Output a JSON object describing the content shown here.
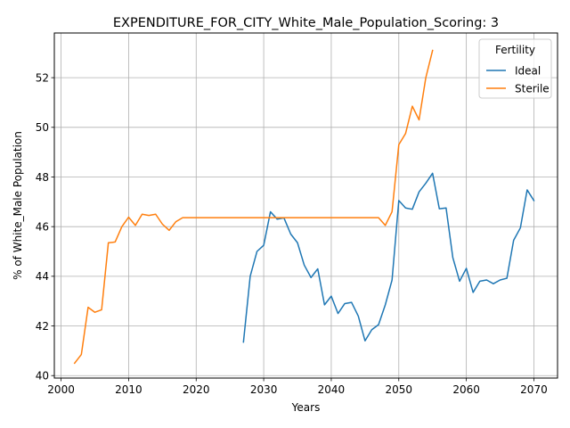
{
  "chart_data": {
    "type": "line",
    "title": "EXPENDITURE_FOR_CITY_White_Male_Population_Scoring: 3",
    "xlabel": "Years",
    "ylabel": "% of White_Male Population",
    "xlim": [
      1999,
      2073.5
    ],
    "ylim": [
      39.9,
      53.8
    ],
    "xticks": [
      2000,
      2010,
      2020,
      2030,
      2040,
      2050,
      2060,
      2070
    ],
    "yticks": [
      40,
      42,
      44,
      46,
      48,
      50,
      52
    ],
    "grid": true,
    "legend": {
      "title": "Fertility",
      "position": "top-right"
    },
    "series": [
      {
        "name": "Ideal",
        "color": "#1f77b4",
        "x": [
          2027,
          2028,
          2029,
          2030,
          2031,
          2032,
          2033,
          2034,
          2035,
          2036,
          2037,
          2038,
          2039,
          2040,
          2041,
          2042,
          2043,
          2044,
          2045,
          2046,
          2047,
          2048,
          2049,
          2050,
          2051,
          2052,
          2053,
          2054,
          2055,
          2056,
          2057,
          2058,
          2059,
          2060,
          2061,
          2062,
          2063,
          2064,
          2065,
          2066,
          2067,
          2068,
          2069,
          2070
        ],
        "y": [
          41.35,
          44.0,
          45.0,
          45.25,
          46.6,
          46.3,
          46.35,
          45.7,
          45.35,
          44.45,
          43.95,
          44.3,
          42.85,
          43.2,
          42.5,
          42.9,
          42.95,
          42.4,
          41.4,
          41.85,
          42.05,
          42.85,
          43.85,
          47.05,
          46.75,
          46.7,
          47.4,
          47.75,
          48.15,
          46.72,
          46.75,
          44.75,
          43.8,
          44.32,
          43.35,
          43.8,
          43.85,
          43.7,
          43.85,
          43.92,
          45.45,
          45.95,
          47.48,
          47.05
        ]
      },
      {
        "name": "Sterile",
        "color": "#ff7f0e",
        "x": [
          2002,
          2003,
          2004,
          2005,
          2006,
          2007,
          2008,
          2009,
          2010,
          2011,
          2012,
          2013,
          2014,
          2015,
          2016,
          2017,
          2018,
          2019,
          2020,
          2021,
          2022,
          2023,
          2024,
          2025,
          2026,
          2027,
          2028,
          2029,
          2030,
          2031,
          2032,
          2033,
          2034,
          2035,
          2036,
          2037,
          2038,
          2039,
          2040,
          2041,
          2042,
          2043,
          2044,
          2045,
          2046,
          2047,
          2048,
          2049,
          2050,
          2051,
          2052,
          2053,
          2054,
          2055
        ],
        "y": [
          40.5,
          40.85,
          42.75,
          42.55,
          42.65,
          45.35,
          45.38,
          46.0,
          46.38,
          46.05,
          46.5,
          46.45,
          46.5,
          46.1,
          45.85,
          46.2,
          46.36,
          46.36,
          46.36,
          46.36,
          46.36,
          46.36,
          46.36,
          46.36,
          46.36,
          46.36,
          46.36,
          46.36,
          46.36,
          46.36,
          46.36,
          46.36,
          46.36,
          46.36,
          46.36,
          46.36,
          46.36,
          46.36,
          46.36,
          46.36,
          46.36,
          46.36,
          46.36,
          46.36,
          46.36,
          46.36,
          46.05,
          46.6,
          49.3,
          49.75,
          50.85,
          50.3,
          52.0,
          53.1
        ]
      }
    ]
  }
}
